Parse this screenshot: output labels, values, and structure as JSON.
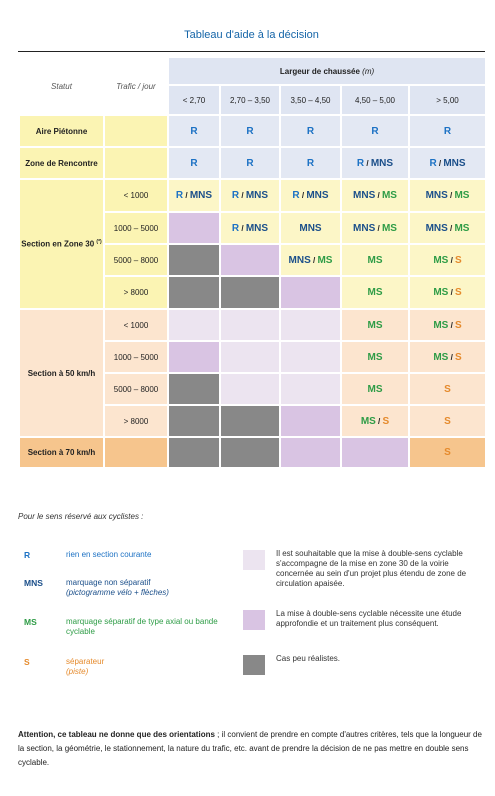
{
  "title": "Tableau d'aide à la décision",
  "header": {
    "statut": "Statut",
    "trafic": "Trafic / jour",
    "largeur": "Largeur de chaussée",
    "unit": "(m)",
    "columns": [
      "< 2,70",
      "2,70 – 3,50",
      "3,50 – 4,50",
      "4,50 – 5,00",
      "> 5,00"
    ]
  },
  "groups": {
    "aire": "Aire Piétonne",
    "rencontre": "Zone de Rencontre",
    "zone30": "Section en Zone 30",
    "zone30_mark": "(*)",
    "s50": "Section à 50 km/h",
    "s70": "Section à 70 km/h"
  },
  "traffic": [
    "< 1000",
    "1000 – 5000",
    "5000 – 8000",
    "> 8000"
  ],
  "rows": {
    "aire": [
      "R",
      "R",
      "R",
      "R",
      "R"
    ],
    "rencontre": [
      "R",
      "R",
      "R",
      "R / MNS",
      "R / MNS"
    ],
    "z30_1": [
      "R / MNS",
      "R / MNS",
      "R / MNS",
      "MNS / MS",
      "MNS / MS"
    ],
    "z30_2": [
      "",
      "R / MNS",
      "MNS",
      "MNS / MS",
      "MNS / MS"
    ],
    "z30_3": [
      "",
      "",
      "MNS / MS",
      "MS",
      "MS / S"
    ],
    "z30_4": [
      "",
      "",
      "",
      "MS",
      "MS / S"
    ],
    "s50_1": [
      "",
      "",
      "",
      "MS",
      "MS / S"
    ],
    "s50_2": [
      "",
      "",
      "",
      "MS",
      "MS / S"
    ],
    "s50_3": [
      "",
      "",
      "",
      "MS",
      "S"
    ],
    "s50_4": [
      "",
      "",
      "",
      "MS / S",
      "S"
    ],
    "s70": [
      "",
      "",
      "",
      "",
      "S"
    ]
  },
  "legend": {
    "intro": "Pour le sens réservé aux cyclistes :",
    "items": [
      {
        "code": "R",
        "text": "rien en section courante",
        "sub": ""
      },
      {
        "code": "MNS",
        "text": "marquage non séparatif",
        "sub": "(pictogramme vélo + flèches)"
      },
      {
        "code": "MS",
        "text": "marquage séparatif de type axial ou bande cyclable",
        "sub": ""
      },
      {
        "code": "S",
        "text": "séparateur",
        "sub": "(piste)"
      }
    ],
    "swatches": [
      {
        "color": "#ece4f0",
        "text": "Il est souhaitable que la mise à double-sens cyclable s'accompagne de la mise en zone 30 de la voirie concernée au sein d'un projet plus étendu de zone de circulation apaisée."
      },
      {
        "color": "#d9c4e3",
        "text": "La mise à double-sens cyclable nécessite une étude approfondie et un traitement plus conséquent."
      },
      {
        "color": "#888888",
        "text": "Cas peu réalistes."
      }
    ]
  },
  "note": {
    "bold": "Attention, ce tableau ne donne que des orientations",
    "rest": " ; il convient de prendre en compte d'autres critères, tels que la longueur de la section, la géométrie, le stationnement, la nature du trafic, etc. avant de prendre la décision de ne pas mettre en double sens cyclable."
  },
  "colors": {
    "R": "#1d72c4",
    "MNS": "#1b4f8a",
    "MS": "#2e9c46",
    "S": "#e58a2c"
  }
}
